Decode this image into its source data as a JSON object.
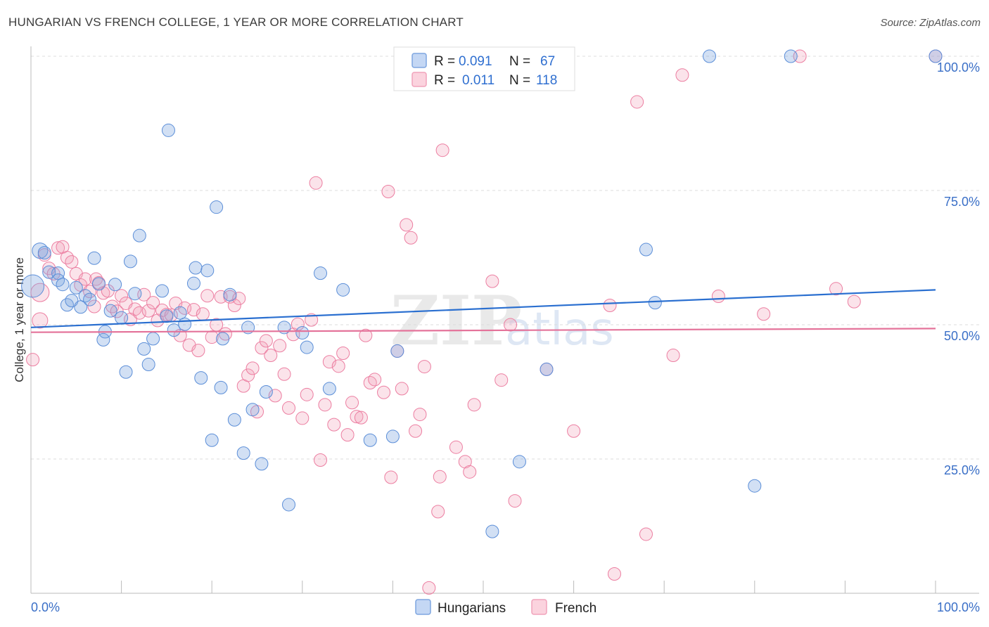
{
  "header": {
    "title": "HUNGARIAN VS FRENCH COLLEGE, 1 YEAR OR MORE CORRELATION CHART",
    "source": "Source: ZipAtlas.com"
  },
  "watermark": {
    "zip": "ZIP",
    "atlas": "atlas"
  },
  "legend": {
    "rows": [
      {
        "r_label": "R =",
        "r_value": "0.091",
        "n_label": "N =",
        "n_value": "67",
        "color": "#7ea6e0"
      },
      {
        "r_label": "R =",
        "r_value": "0.011",
        "n_label": "N =",
        "n_value": "118",
        "color": "#f1a3bb"
      }
    ]
  },
  "bottom_legend": [
    {
      "label": "Hungarians",
      "color": "#7ea6e0"
    },
    {
      "label": "French",
      "color": "#f1a3bb"
    }
  ],
  "chart_data": {
    "type": "scatter",
    "title": "HUNGARIAN VS FRENCH COLLEGE, 1 YEAR OR MORE CORRELATION CHART",
    "xlabel": "",
    "ylabel": "College, 1 year or more",
    "xlim": [
      0,
      100
    ],
    "ylim": [
      0,
      102
    ],
    "x_tick_labels": [
      "0.0%",
      "100.0%"
    ],
    "y_ticks": [
      25,
      50,
      75,
      100
    ],
    "y_tick_labels": [
      "25.0%",
      "50.0%",
      "75.0%",
      "100.0%"
    ],
    "grid": true,
    "legend_position": "top-center",
    "colors": {
      "hungarians": "#5b8ed8",
      "french": "#ec7ea1",
      "hungarians_line": "#2a6fd0",
      "french_line": "#e4739a"
    },
    "series": [
      {
        "name": "Hungarians",
        "trend": {
          "x": [
            0,
            100
          ],
          "y": [
            49.5,
            56.5
          ]
        },
        "points": [
          [
            0.2,
            57.2,
            16
          ],
          [
            1,
            63.8,
            11
          ],
          [
            1.5,
            63.4,
            9
          ],
          [
            2,
            59.8,
            9
          ],
          [
            3,
            59.6,
            9
          ],
          [
            3,
            58.3,
            9
          ],
          [
            3.5,
            57.5,
            9
          ],
          [
            4,
            53.7,
            9
          ],
          [
            4.5,
            54.5,
            9
          ],
          [
            5,
            56.9,
            9
          ],
          [
            5.5,
            53.3,
            9
          ],
          [
            6,
            55.4,
            9
          ],
          [
            6.5,
            54.7,
            9
          ],
          [
            7,
            62.4,
            9
          ],
          [
            7.5,
            57.6,
            9
          ],
          [
            8,
            47.2,
            9
          ],
          [
            8.2,
            48.7,
            9
          ],
          [
            8.8,
            52.6,
            9
          ],
          [
            9.3,
            57.5,
            9
          ],
          [
            10,
            51.3,
            9
          ],
          [
            10.5,
            41.2,
            9
          ],
          [
            11,
            61.8,
            9
          ],
          [
            11.5,
            55.8,
            9
          ],
          [
            12,
            66.6,
            9
          ],
          [
            12.5,
            45.5,
            9
          ],
          [
            13,
            42.6,
            9
          ],
          [
            13.5,
            47.4,
            9
          ],
          [
            14.5,
            56.3,
            9
          ],
          [
            15,
            51.6,
            9
          ],
          [
            15.2,
            86.2,
            9
          ],
          [
            15.8,
            49.0,
            9
          ],
          [
            16.5,
            52.2,
            9
          ],
          [
            17,
            50.1,
            9
          ],
          [
            18,
            57.7,
            9
          ],
          [
            18.2,
            60.6,
            9
          ],
          [
            18.8,
            40.1,
            9
          ],
          [
            19.5,
            60.1,
            9
          ],
          [
            20,
            28.5,
            9
          ],
          [
            20.5,
            71.9,
            9
          ],
          [
            21,
            38.3,
            9
          ],
          [
            21.2,
            47.4,
            9
          ],
          [
            22,
            55.6,
            9
          ],
          [
            22.5,
            32.3,
            9
          ],
          [
            23.5,
            26.1,
            9
          ],
          [
            24,
            49.5,
            9
          ],
          [
            24.5,
            34.2,
            9
          ],
          [
            25.5,
            24.1,
            9
          ],
          [
            26,
            37.5,
            9
          ],
          [
            28,
            49.5,
            9
          ],
          [
            28.5,
            16.5,
            9
          ],
          [
            30,
            48.5,
            9
          ],
          [
            30.5,
            45.8,
            9
          ],
          [
            32,
            59.6,
            9
          ],
          [
            33,
            38.1,
            9
          ],
          [
            34.5,
            56.5,
            9
          ],
          [
            37.5,
            28.5,
            9
          ],
          [
            40,
            29.2,
            9
          ],
          [
            40.5,
            45.1,
            9
          ],
          [
            51,
            11.5,
            9
          ],
          [
            54,
            24.5,
            9
          ],
          [
            57,
            41.7,
            9
          ],
          [
            68,
            64.0,
            9
          ],
          [
            69,
            54.1,
            9
          ],
          [
            75,
            100,
            9
          ],
          [
            80,
            20.0,
            9
          ],
          [
            84,
            100,
            9
          ],
          [
            100,
            100,
            9
          ]
        ]
      },
      {
        "name": "French",
        "trend": {
          "x": [
            0,
            100
          ],
          "y": [
            48.6,
            49.3
          ]
        },
        "points": [
          [
            0.2,
            43.5,
            9
          ],
          [
            1,
            56.0,
            13
          ],
          [
            1,
            50.8,
            11
          ],
          [
            1.5,
            63.0,
            9
          ],
          [
            2,
            60.5,
            9
          ],
          [
            2.5,
            59.5,
            9
          ],
          [
            3,
            64.3,
            9
          ],
          [
            3.5,
            64.5,
            9
          ],
          [
            4,
            62.5,
            9
          ],
          [
            4.5,
            61.7,
            9
          ],
          [
            5,
            59.5,
            9
          ],
          [
            5.5,
            57.4,
            9
          ],
          [
            6,
            58.5,
            9
          ],
          [
            6.5,
            56.2,
            9
          ],
          [
            7,
            53.4,
            9
          ],
          [
            7.2,
            58.5,
            9
          ],
          [
            7.5,
            57.8,
            9
          ],
          [
            8,
            55.9,
            9
          ],
          [
            8.5,
            56.3,
            9
          ],
          [
            9,
            53.4,
            9
          ],
          [
            9.5,
            52.5,
            9
          ],
          [
            10,
            55.4,
            9
          ],
          [
            10.5,
            54.0,
            9
          ],
          [
            11,
            51.0,
            9
          ],
          [
            11.5,
            52.9,
            9
          ],
          [
            12,
            52.2,
            9
          ],
          [
            12.5,
            55.6,
            9
          ],
          [
            13,
            52.6,
            9
          ],
          [
            13.5,
            54.1,
            9
          ],
          [
            14,
            50.8,
            9
          ],
          [
            14.5,
            52.7,
            9
          ],
          [
            15,
            51.9,
            9
          ],
          [
            15.5,
            51.8,
            9
          ],
          [
            16,
            54.0,
            9
          ],
          [
            16.5,
            48.0,
            9
          ],
          [
            17,
            53.1,
            9
          ],
          [
            17.5,
            46.2,
            9
          ],
          [
            18,
            52.8,
            9
          ],
          [
            18.5,
            45.2,
            9
          ],
          [
            19,
            52.0,
            9
          ],
          [
            19.5,
            55.4,
            9
          ],
          [
            20,
            47.7,
            9
          ],
          [
            20.5,
            50.0,
            9
          ],
          [
            21,
            55.2,
            9
          ],
          [
            21.5,
            48.3,
            9
          ],
          [
            22,
            55.2,
            9
          ],
          [
            22.5,
            53.6,
            9
          ],
          [
            23,
            54.9,
            9
          ],
          [
            23.5,
            38.6,
            9
          ],
          [
            24,
            40.6,
            9
          ],
          [
            24.5,
            41.9,
            9
          ],
          [
            25,
            33.8,
            9
          ],
          [
            25.5,
            45.7,
            9
          ],
          [
            26,
            47.0,
            9
          ],
          [
            26.5,
            44.3,
            9
          ],
          [
            27,
            36.8,
            9
          ],
          [
            27.5,
            46.1,
            9
          ],
          [
            28,
            40.8,
            9
          ],
          [
            28.5,
            34.5,
            9
          ],
          [
            29,
            48.2,
            9
          ],
          [
            29.5,
            50.1,
            9
          ],
          [
            30,
            32.6,
            9
          ],
          [
            30.5,
            37.0,
            9
          ],
          [
            31,
            50.9,
            9
          ],
          [
            31.5,
            76.4,
            9
          ],
          [
            32,
            24.8,
            9
          ],
          [
            32.5,
            35.1,
            9
          ],
          [
            33,
            43.1,
            9
          ],
          [
            33.5,
            31.4,
            9
          ],
          [
            34,
            42.3,
            9
          ],
          [
            34.5,
            44.7,
            9
          ],
          [
            35,
            29.5,
            9
          ],
          [
            35.5,
            35.5,
            9
          ],
          [
            36,
            32.9,
            9
          ],
          [
            36.5,
            32.7,
            9
          ],
          [
            37,
            48.0,
            9
          ],
          [
            37.5,
            39.2,
            9
          ],
          [
            38,
            39.8,
            9
          ],
          [
            39,
            37.4,
            9
          ],
          [
            39.5,
            74.8,
            9
          ],
          [
            39.8,
            21.6,
            9
          ],
          [
            40.5,
            45.1,
            9
          ],
          [
            41,
            38.1,
            9
          ],
          [
            41.5,
            68.6,
            9
          ],
          [
            42,
            66.2,
            9
          ],
          [
            42.5,
            30.2,
            9
          ],
          [
            43,
            33.3,
            9
          ],
          [
            43.5,
            42.2,
            9
          ],
          [
            44,
            1.0,
            9
          ],
          [
            45,
            15.2,
            9
          ],
          [
            45.2,
            21.7,
            9
          ],
          [
            45.5,
            82.5,
            9
          ],
          [
            47,
            27.2,
            9
          ],
          [
            48,
            24.5,
            9
          ],
          [
            48.5,
            22.6,
            9
          ],
          [
            49,
            35.1,
            9
          ],
          [
            51,
            58.1,
            9
          ],
          [
            52,
            39.7,
            9
          ],
          [
            53,
            50.0,
            9
          ],
          [
            53.5,
            17.2,
            9
          ],
          [
            57,
            41.7,
            9
          ],
          [
            58,
            100,
            9
          ],
          [
            60,
            30.2,
            9
          ],
          [
            64,
            53.6,
            9
          ],
          [
            64.5,
            3.6,
            9
          ],
          [
            67,
            91.5,
            9
          ],
          [
            68,
            11.0,
            9
          ],
          [
            71,
            44.3,
            9
          ],
          [
            72,
            96.5,
            9
          ],
          [
            76,
            55.3,
            9
          ],
          [
            81,
            52.0,
            9
          ],
          [
            85,
            100,
            9
          ],
          [
            89,
            56.7,
            9
          ],
          [
            91,
            54.3,
            9
          ],
          [
            100,
            100,
            9
          ]
        ]
      }
    ]
  }
}
